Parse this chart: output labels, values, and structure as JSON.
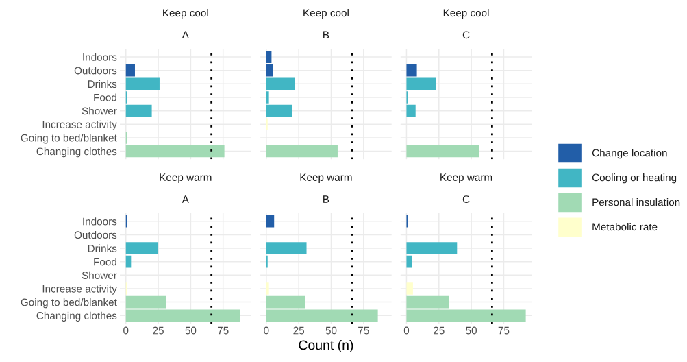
{
  "chart_data": [
    {
      "type": "bar",
      "orientation": "horizontal",
      "title": "Keep cool",
      "subtitle": "A",
      "categories": [
        "Indoors",
        "Outdoors",
        "Drinks",
        "Food",
        "Shower",
        "Increase activity",
        "Going to bed/blanket",
        "Changing clothes"
      ],
      "series": [
        {
          "name": "Change location",
          "color": "#225ea8",
          "values": [
            0,
            7,
            null,
            null,
            null,
            null,
            null,
            null
          ]
        },
        {
          "name": "Cooling or heating",
          "color": "#41b6c4",
          "values": [
            null,
            null,
            26,
            1,
            20,
            null,
            null,
            null
          ]
        },
        {
          "name": "Personal insulation",
          "color": "#a1dab4",
          "values": [
            null,
            null,
            null,
            null,
            null,
            null,
            1,
            76
          ]
        },
        {
          "name": "Metabolic rate",
          "color": "#ffffcc",
          "values": [
            null,
            null,
            null,
            null,
            null,
            0,
            null,
            null
          ]
        }
      ],
      "xlim": [
        -4.6,
        96.6
      ],
      "xticks": [
        0,
        25,
        50,
        75
      ],
      "grid": true,
      "tick_labels": "y",
      "legend": "right",
      "ref_lines": [
        {
          "axis": "x",
          "value": 66,
          "color": "#000000",
          "line_style": "dotted"
        }
      ]
    },
    {
      "type": "bar",
      "orientation": "horizontal",
      "title": "Keep cool",
      "subtitle": "B",
      "categories": [
        null,
        null,
        null,
        null,
        null,
        null,
        null,
        null
      ],
      "series": [
        {
          "color": "#225ea8",
          "values": [
            4,
            5,
            null,
            null,
            null,
            null,
            null,
            null
          ]
        },
        {
          "color": "#41b6c4",
          "values": [
            null,
            null,
            22,
            2,
            20,
            null,
            null,
            null
          ]
        },
        {
          "color": "#a1dab4",
          "values": [
            null,
            null,
            null,
            null,
            null,
            null,
            0,
            55
          ]
        },
        {
          "color": "#ffffcc",
          "values": [
            null,
            null,
            null,
            null,
            null,
            1,
            null,
            null
          ]
        }
      ],
      "xlim": [
        -4.6,
        96.6
      ],
      "xticks": [
        0,
        25,
        50,
        75
      ],
      "grid": true,
      "tick_labels": false,
      "ref_lines": [
        {
          "axis": "x",
          "value": 66,
          "color": "#000000",
          "line_style": "dotted"
        }
      ]
    },
    {
      "type": "bar",
      "orientation": "horizontal",
      "title": "Keep cool",
      "subtitle": "C",
      "categories": [
        null,
        null,
        null,
        null,
        null,
        null,
        null,
        null
      ],
      "series": [
        {
          "color": "#225ea8",
          "values": [
            0,
            8,
            null,
            null,
            null,
            null,
            null,
            null
          ]
        },
        {
          "color": "#41b6c4",
          "values": [
            null,
            null,
            23,
            1,
            7,
            null,
            null,
            null
          ]
        },
        {
          "color": "#a1dab4",
          "values": [
            null,
            null,
            null,
            null,
            null,
            null,
            0,
            56
          ]
        },
        {
          "color": "#ffffcc",
          "values": [
            null,
            null,
            null,
            null,
            null,
            0,
            null,
            null
          ]
        }
      ],
      "xlim": [
        -4.6,
        96.6
      ],
      "xticks": [
        0,
        25,
        50,
        75
      ],
      "grid": true,
      "tick_labels": false,
      "ref_lines": [
        {
          "axis": "x",
          "value": 66,
          "color": "#000000",
          "line_style": "dotted"
        }
      ]
    },
    {
      "type": "bar",
      "orientation": "horizontal",
      "title": "Keep warm",
      "subtitle": "A",
      "categories": [
        "Indoors",
        "Outdoors",
        "Drinks",
        "Food",
        "Shower",
        "Increase activity",
        "Going to bed/blanket",
        "Changing clothes"
      ],
      "series": [
        {
          "color": "#225ea8",
          "values": [
            1,
            0,
            null,
            null,
            null,
            null,
            null,
            null
          ]
        },
        {
          "color": "#41b6c4",
          "values": [
            null,
            null,
            25,
            4,
            0,
            null,
            null,
            null
          ]
        },
        {
          "color": "#a1dab4",
          "values": [
            null,
            null,
            null,
            null,
            null,
            null,
            31,
            88
          ]
        },
        {
          "color": "#ffffcc",
          "values": [
            null,
            null,
            null,
            null,
            null,
            1,
            null,
            null
          ]
        }
      ],
      "xlim": [
        -4.6,
        96.6
      ],
      "xticks": [
        0,
        25,
        50,
        75
      ],
      "grid": true,
      "ref_lines": [
        {
          "axis": "x",
          "value": 66,
          "color": "#000000",
          "line_style": "dotted"
        }
      ]
    },
    {
      "type": "bar",
      "orientation": "horizontal",
      "title": "Keep warm",
      "subtitle": "B",
      "xlabel": "Count (n)",
      "categories": [
        null,
        null,
        null,
        null,
        null,
        null,
        null,
        null
      ],
      "series": [
        {
          "color": "#225ea8",
          "values": [
            6,
            0,
            null,
            null,
            null,
            null,
            null,
            null
          ]
        },
        {
          "color": "#41b6c4",
          "values": [
            null,
            null,
            31,
            1,
            0,
            null,
            null,
            null
          ]
        },
        {
          "color": "#a1dab4",
          "values": [
            null,
            null,
            null,
            null,
            null,
            null,
            30,
            86
          ]
        },
        {
          "color": "#ffffcc",
          "values": [
            null,
            null,
            null,
            null,
            null,
            2,
            null,
            null
          ]
        }
      ],
      "xlim": [
        -4.6,
        96.6
      ],
      "xticks": [
        0,
        25,
        50,
        75
      ],
      "grid": true,
      "tick_labels": "x",
      "ref_lines": [
        {
          "axis": "x",
          "value": 66,
          "color": "#000000",
          "line_style": "dotted"
        }
      ]
    },
    {
      "type": "bar",
      "orientation": "horizontal",
      "title": "Keep warm",
      "subtitle": "C",
      "categories": [
        null,
        null,
        null,
        null,
        null,
        null,
        null,
        null
      ],
      "series": [
        {
          "color": "#225ea8",
          "values": [
            1,
            0,
            null,
            null,
            null,
            null,
            null,
            null
          ]
        },
        {
          "color": "#41b6c4",
          "values": [
            null,
            null,
            39,
            4,
            0,
            null,
            null,
            null
          ]
        },
        {
          "color": "#a1dab4",
          "values": [
            null,
            null,
            null,
            null,
            null,
            null,
            33,
            92
          ]
        },
        {
          "color": "#ffffcc",
          "values": [
            null,
            null,
            null,
            null,
            null,
            5,
            null,
            null
          ]
        }
      ],
      "xlim": [
        -4.6,
        96.6
      ],
      "xticks": [
        0,
        25,
        50,
        75
      ],
      "grid": true,
      "tick_labels": "x",
      "ref_lines": [
        {
          "axis": "x",
          "value": 66,
          "color": "#000000",
          "line_style": "dotted"
        }
      ]
    }
  ]
}
